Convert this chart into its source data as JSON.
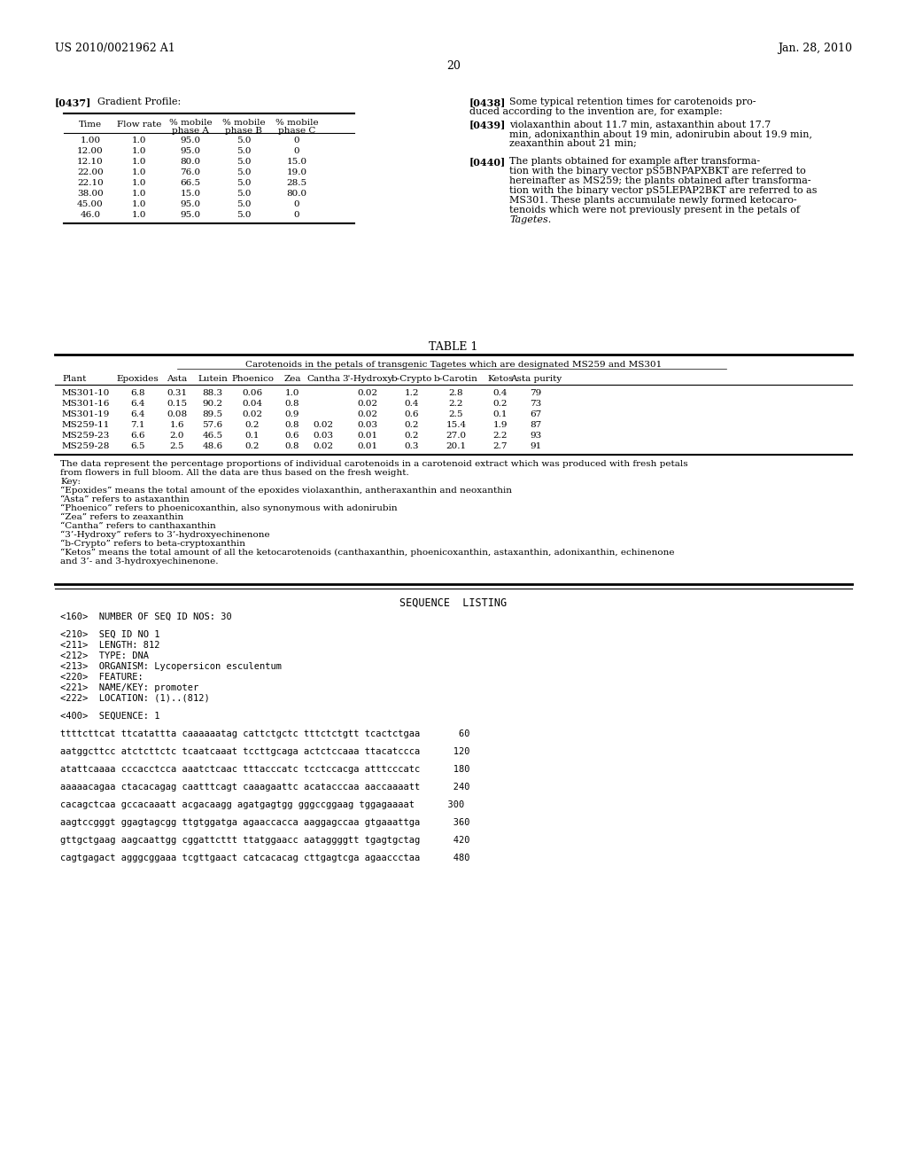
{
  "bg_color": "#ffffff",
  "header_left": "US 2010/0021962 A1",
  "header_right": "Jan. 28, 2010",
  "page_number": "20",
  "para_437_label": "[0437]",
  "para_437_text": "Gradient Profile:",
  "gradient_table_headers": [
    "Time",
    "Flow rate",
    "% mobile\nphase A",
    "% mobile\nphase B",
    "% mobile\nphase C"
  ],
  "gradient_table_rows": [
    [
      "1.00",
      "1.0",
      "95.0",
      "5.0",
      "0"
    ],
    [
      "12.00",
      "1.0",
      "95.0",
      "5.0",
      "0"
    ],
    [
      "12.10",
      "1.0",
      "80.0",
      "5.0",
      "15.0"
    ],
    [
      "22.00",
      "1.0",
      "76.0",
      "5.0",
      "19.0"
    ],
    [
      "22.10",
      "1.0",
      "66.5",
      "5.0",
      "28.5"
    ],
    [
      "38.00",
      "1.0",
      "15.0",
      "5.0",
      "80.0"
    ],
    [
      "45.00",
      "1.0",
      "95.0",
      "5.0",
      "0"
    ],
    [
      "46.0",
      "1.0",
      "95.0",
      "5.0",
      "0"
    ]
  ],
  "para_438_label": "[0438]",
  "para_438_text": "Some typical retention times for carotenoids produced according to the invention are, for example:",
  "para_439_label": "[0439]",
  "para_439_text": "violaxanthin about 11.7 min, astaxanthin about 17.7 min, adonixanthin about 19 min, adonirubin about 19.9 min, zeaxanthin about 21 min;",
  "para_440_label": "[0440]",
  "para_440_text": "The plants obtained for example after transformation with the binary vector pS5BNPAPXBKT are referred to hereinafter as MS259; the plants obtained after transformation with the binary vector pS5LEPAP2BKT are referred to as MS301. These plants accumulate newly formed ketocarotenoids which were not previously present in the petals of Tagetes.",
  "para_440_italic": "Tagetes.",
  "table1_title": "TABLE 1",
  "table1_subtitle": "Carotenoids in the petals of transgenic Tagetes which are designated MS259 and MS301",
  "table1_headers": [
    "Plant",
    "Epoxides",
    "Asta",
    "Lutein",
    "Phoenico",
    "Zea",
    "Cantha",
    "3'-Hydroxy",
    "b-Crypto",
    "b-Carotin",
    "Ketos",
    "Asta purity"
  ],
  "table1_rows": [
    [
      "MS301-10",
      "6.8",
      "0.31",
      "88.3",
      "0.06",
      "1.0",
      "",
      "0.02",
      "1.2",
      "2.8",
      "0.4",
      "79"
    ],
    [
      "MS301-16",
      "6.4",
      "0.15",
      "90.2",
      "0.04",
      "0.8",
      "",
      "0.02",
      "0.4",
      "2.2",
      "0.2",
      "73"
    ],
    [
      "MS301-19",
      "6.4",
      "0.08",
      "89.5",
      "0.02",
      "0.9",
      "",
      "0.02",
      "0.6",
      "2.5",
      "0.1",
      "67"
    ],
    [
      "MS259-11",
      "7.1",
      "1.6",
      "57.6",
      "0.2",
      "0.8",
      "0.02",
      "0.03",
      "0.2",
      "15.4",
      "1.9",
      "87"
    ],
    [
      "MS259-23",
      "6.6",
      "2.0",
      "46.5",
      "0.1",
      "0.6",
      "0.03",
      "0.01",
      "0.2",
      "27.0",
      "2.2",
      "93"
    ],
    [
      "MS259-28",
      "6.5",
      "2.5",
      "48.6",
      "0.2",
      "0.8",
      "0.02",
      "0.01",
      "0.3",
      "20.1",
      "2.7",
      "91"
    ]
  ],
  "table1_footnote_lines": [
    "The data represent the percentage proportions of individual carotenoids in a carotenoid extract which was produced with fresh petals",
    "from flowers in full bloom. All the data are thus based on the fresh weight.",
    "Key:",
    "“Epoxides” means the total amount of the epoxides violaxanthin, antheraxanthin and neoxanthin",
    "“Asta” refers to astaxanthin",
    "“Phoenico” refers to phoenicoxanthin, also synonymous with adonirubin",
    "“Zea” refers to zeaxanthin",
    "“Cantha” refers to canthaxanthin",
    "“3’-Hydroxy” refers to 3’-hydroxyechinenone",
    "“b-Crypto” refers to beta-cryptoxanthin",
    "“Ketos” means the total amount of all the ketocarotenoids (canthaxanthin, phoenicoxanthin, astaxanthin, adonixanthin, echinenone",
    "and 3’- and 3-hydroxyechinenone."
  ],
  "seq_listing_title": "SEQUENCE  LISTING",
  "seq_lines": [
    "<160>  NUMBER OF SEQ ID NOS: 30",
    "",
    "<210>  SEQ ID NO 1",
    "<211>  LENGTH: 812",
    "<212>  TYPE: DNA",
    "<213>  ORGANISM: Lycopersicon esculentum",
    "<220>  FEATURE:",
    "<221>  NAME/KEY: promoter",
    "<222>  LOCATION: (1)..(812)",
    "",
    "<400>  SEQUENCE: 1",
    "",
    "ttttcttcat ttcatattta caaaaaatag cattctgctc tttctctgtt tcactctgaa       60",
    "",
    "aatggcttcc atctcttctc tcaatcaaat tccttgcaga actctccaaa ttacatccca      120",
    "",
    "atattcaaaa cccacctcca aaatctcaac tttacccatc tcctccacga atttcccatc      180",
    "",
    "aaaaacagaa ctacacagag caatttcagt caaagaattc acatacccaa aaccaaaatt      240",
    "",
    "cacagctcaa gccacaaatt acgacaagg agatgagtgg gggccggaag tggagaaaat      300",
    "",
    "aagtccgggt ggagtagcgg ttgtggatga agaaccacca aaggagccaa gtgaaattga      360",
    "",
    "gttgctgaag aagcaattgg cggattcttt ttatggaacc aataggggtt tgagtgctag      420",
    "",
    "cagtgagact agggcggaaa tcgttgaact catcacacag cttgagtcga agaaccctaa      480"
  ]
}
